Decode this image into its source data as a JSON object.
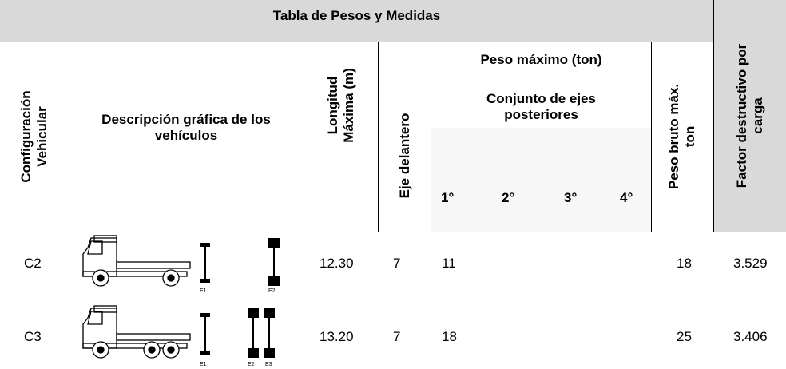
{
  "title": "Tabla de Pesos y Medidas",
  "headers": {
    "configuracion": "Configuración Vehicular",
    "descripcion": "Descripción gráfica de los vehículos",
    "longitud": "Longitud Máxima (m)",
    "eje_delantero": "Eje delantero",
    "peso_maximo": "Peso máximo (ton)",
    "conjunto": "Conjunto de ejes posteriores",
    "ejes": [
      "1°",
      "2°",
      "3°",
      "4°"
    ],
    "peso_bruto": "Peso bruto máx. ton",
    "factor": "Factor destructivo por carga"
  },
  "rows": [
    {
      "config": "C2",
      "axle_labels": [
        "E1",
        "E2"
      ],
      "longitud": "12.30",
      "eje_delantero": "7",
      "conjunto_1": "11",
      "peso_bruto": "18",
      "factor": "3.529"
    },
    {
      "config": "C3",
      "axle_labels": [
        "E1",
        "E2",
        "E3"
      ],
      "longitud": "13.20",
      "eje_delantero": "7",
      "conjunto_1": "18",
      "peso_bruto": "25",
      "factor": "3.406"
    }
  ]
}
